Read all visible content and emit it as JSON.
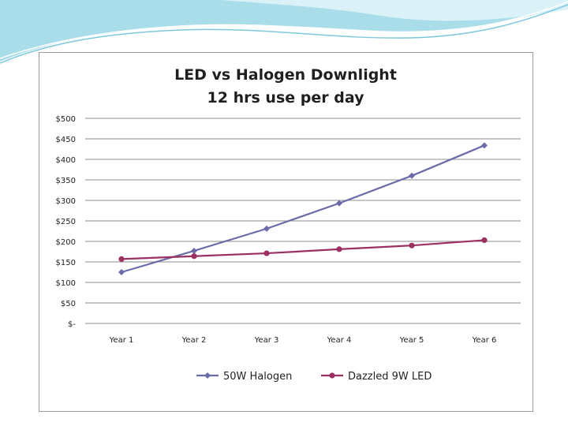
{
  "colors": {
    "halogen": "#6b6ba8",
    "led": "#9b2f62",
    "grid": "#8c8c8c",
    "header_wave": "#7ec8dc"
  },
  "chart_data": {
    "type": "line",
    "title": [
      "LED vs Halogen Downlight",
      "12 hrs use per day"
    ],
    "categories": [
      "Year 1",
      "Year 2",
      "Year 3",
      "Year 4",
      "Year 5",
      "Year 6"
    ],
    "series": [
      {
        "name": "50W Halogen",
        "values": [
          125,
          177,
          231,
          293,
          360,
          434
        ]
      },
      {
        "name": "Dazzled 9W LED",
        "values": [
          157,
          164,
          171,
          181,
          190,
          203
        ]
      }
    ],
    "ylim": [
      0,
      500
    ],
    "yticks": [
      0,
      50,
      100,
      150,
      200,
      250,
      300,
      350,
      400,
      450,
      500
    ],
    "ytick_labels": [
      "$-",
      "$50",
      "$100",
      "$150",
      "$200",
      "$250",
      "$300",
      "$350",
      "$400",
      "$450",
      "$500"
    ],
    "grid": true,
    "legend": "bottom"
  }
}
